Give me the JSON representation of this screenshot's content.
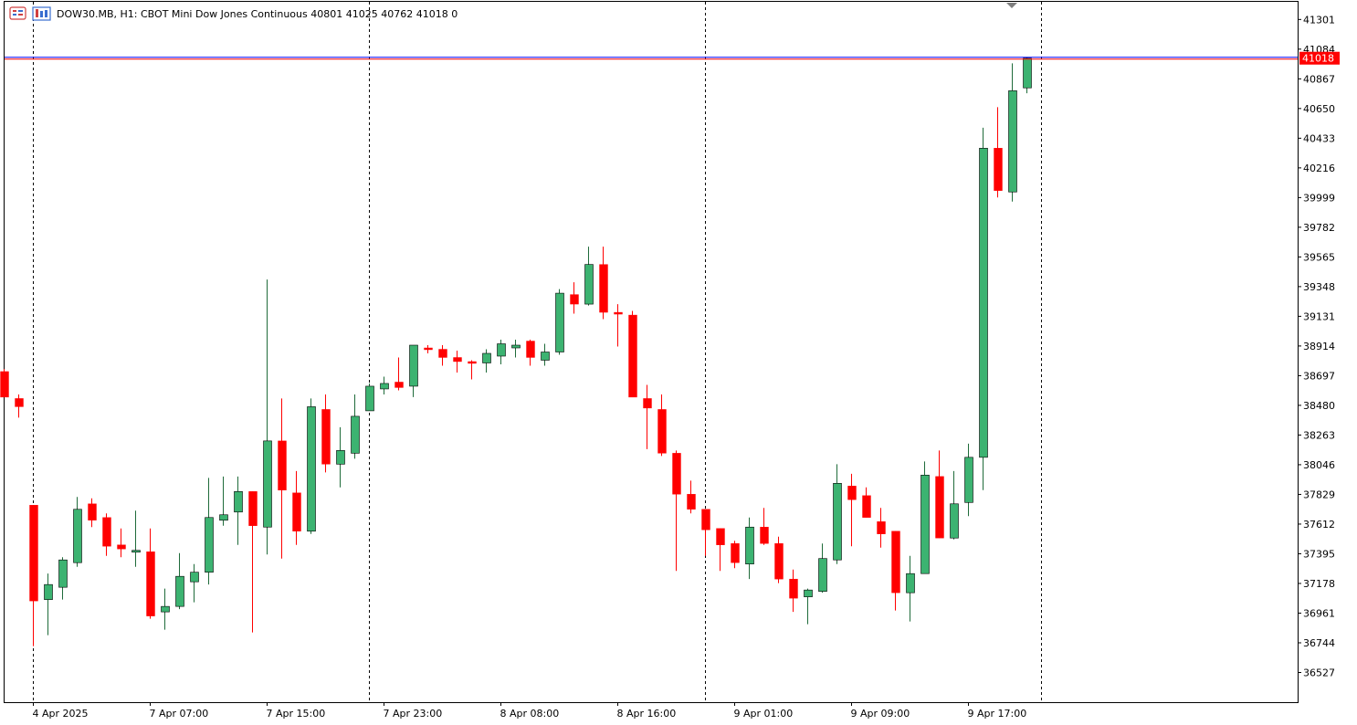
{
  "header": {
    "symbol_line": "DOW30.MB, H1:  CBOT Mini Dow Jones Continuous  40801 41025 40762 41018  0",
    "icons": [
      "trade-panel-icon",
      "chart-icon"
    ]
  },
  "colors": {
    "bull": "#3CB371",
    "bear": "#FF0000",
    "outline": "#000000",
    "bid_line": "#0000FF",
    "ask_line": "#FF0000",
    "price_label_bg": "#FF0000",
    "price_label_text": "#FFFFFF"
  },
  "chart_data": {
    "type": "candlestick",
    "title": "DOW30.MB, H1:  CBOT Mini Dow Jones Continuous",
    "ohlc_header": {
      "open": 40801,
      "high": 41025,
      "low": 40762,
      "close": 41018,
      "volume": 0
    },
    "current_price": 41018,
    "ylim": [
      36310,
      41430
    ],
    "y_ticks": [
      41301,
      41084,
      40867,
      40650,
      40433,
      40216,
      39999,
      39782,
      39565,
      39348,
      39131,
      38914,
      38697,
      38480,
      38263,
      38046,
      37829,
      37612,
      37395,
      37178,
      36961,
      36744,
      36527
    ],
    "x_labels": [
      {
        "index": 2,
        "label": "4 Apr 2025"
      },
      {
        "index": 10,
        "label": "7 Apr 07:00"
      },
      {
        "index": 18,
        "label": "7 Apr 15:00"
      },
      {
        "index": 26,
        "label": "7 Apr 23:00"
      },
      {
        "index": 34,
        "label": "8 Apr 08:00"
      },
      {
        "index": 42,
        "label": "8 Apr 16:00"
      },
      {
        "index": 50,
        "label": "9 Apr 01:00"
      },
      {
        "index": 58,
        "label": "9 Apr 09:00"
      },
      {
        "index": 66,
        "label": "9 Apr 17:00"
      }
    ],
    "separators": [
      2,
      25,
      48,
      71
    ],
    "grid": false,
    "candles": [
      [
        38727,
        38745,
        38540,
        38540
      ],
      [
        38530,
        38560,
        38390,
        38470
      ],
      [
        37750,
        37750,
        36720,
        37050
      ],
      [
        37060,
        37250,
        36800,
        37170
      ],
      [
        37150,
        37370,
        37060,
        37350
      ],
      [
        37330,
        37810,
        37300,
        37720
      ],
      [
        37760,
        37800,
        37590,
        37640
      ],
      [
        37660,
        37690,
        37380,
        37450
      ],
      [
        37460,
        37580,
        37370,
        37430
      ],
      [
        37420,
        37710,
        37300,
        37420
      ],
      [
        37410,
        37580,
        36920,
        36940
      ],
      [
        36970,
        37140,
        36840,
        37010
      ],
      [
        37010,
        37400,
        36990,
        37230
      ],
      [
        37190,
        37320,
        37040,
        37260
      ],
      [
        37260,
        37950,
        37170,
        37660
      ],
      [
        37640,
        37960,
        37600,
        37680
      ],
      [
        37700,
        37960,
        37460,
        37850
      ],
      [
        37850,
        37850,
        36820,
        37600
      ],
      [
        37590,
        39400,
        37390,
        38220
      ],
      [
        38220,
        38530,
        37360,
        37860
      ],
      [
        37840,
        38000,
        37460,
        37560
      ],
      [
        37560,
        38530,
        37540,
        38470
      ],
      [
        38450,
        38560,
        37990,
        38050
      ],
      [
        38050,
        38320,
        37880,
        38150
      ],
      [
        38130,
        38560,
        38090,
        38400
      ],
      [
        38440,
        38640,
        38440,
        38620
      ],
      [
        38600,
        38690,
        38560,
        38640
      ],
      [
        38650,
        38830,
        38590,
        38610
      ],
      [
        38620,
        38910,
        38540,
        38920
      ],
      [
        38900,
        38920,
        38860,
        38890
      ],
      [
        38890,
        38920,
        38770,
        38830
      ],
      [
        38830,
        38880,
        38720,
        38800
      ],
      [
        38800,
        38810,
        38670,
        38790
      ],
      [
        38790,
        38890,
        38720,
        38860
      ],
      [
        38840,
        38960,
        38780,
        38930
      ],
      [
        38900,
        38960,
        38830,
        38920
      ],
      [
        38950,
        38960,
        38770,
        38830
      ],
      [
        38810,
        38930,
        38770,
        38870
      ],
      [
        38870,
        39330,
        38850,
        39300
      ],
      [
        39290,
        39380,
        39150,
        39220
      ],
      [
        39220,
        39640,
        39210,
        39510
      ],
      [
        39510,
        39640,
        39110,
        39160
      ],
      [
        39160,
        39220,
        38910,
        39150
      ],
      [
        39140,
        39170,
        38540,
        38540
      ],
      [
        38530,
        38630,
        38160,
        38460
      ],
      [
        38450,
        38560,
        38110,
        38130
      ],
      [
        38130,
        38150,
        37270,
        37830
      ],
      [
        37830,
        37930,
        37690,
        37720
      ],
      [
        37720,
        37720,
        37380,
        37570
      ],
      [
        37580,
        37580,
        37270,
        37460
      ],
      [
        37470,
        37490,
        37290,
        37330
      ],
      [
        37320,
        37660,
        37210,
        37590
      ],
      [
        37590,
        37730,
        37460,
        37470
      ],
      [
        37470,
        37520,
        37180,
        37210
      ],
      [
        37210,
        37280,
        36970,
        37070
      ],
      [
        37080,
        37140,
        36880,
        37130
      ],
      [
        37120,
        37470,
        37110,
        37360
      ],
      [
        37350,
        38050,
        37320,
        37910
      ],
      [
        37890,
        37980,
        37450,
        37790
      ],
      [
        37820,
        37880,
        37660,
        37660
      ],
      [
        37630,
        37730,
        37440,
        37540
      ],
      [
        37560,
        37560,
        36980,
        37110
      ],
      [
        37110,
        37380,
        36900,
        37250
      ],
      [
        37250,
        38070,
        37250,
        37970
      ],
      [
        37960,
        38150,
        37510,
        37510
      ],
      [
        37510,
        38000,
        37500,
        37760
      ],
      [
        37770,
        38200,
        37670,
        38100
      ],
      [
        38100,
        40510,
        37860,
        40360
      ],
      [
        40360,
        40660,
        40000,
        40050
      ],
      [
        40040,
        40980,
        39970,
        40780
      ],
      [
        40801,
        41025,
        40762,
        41018
      ]
    ]
  }
}
